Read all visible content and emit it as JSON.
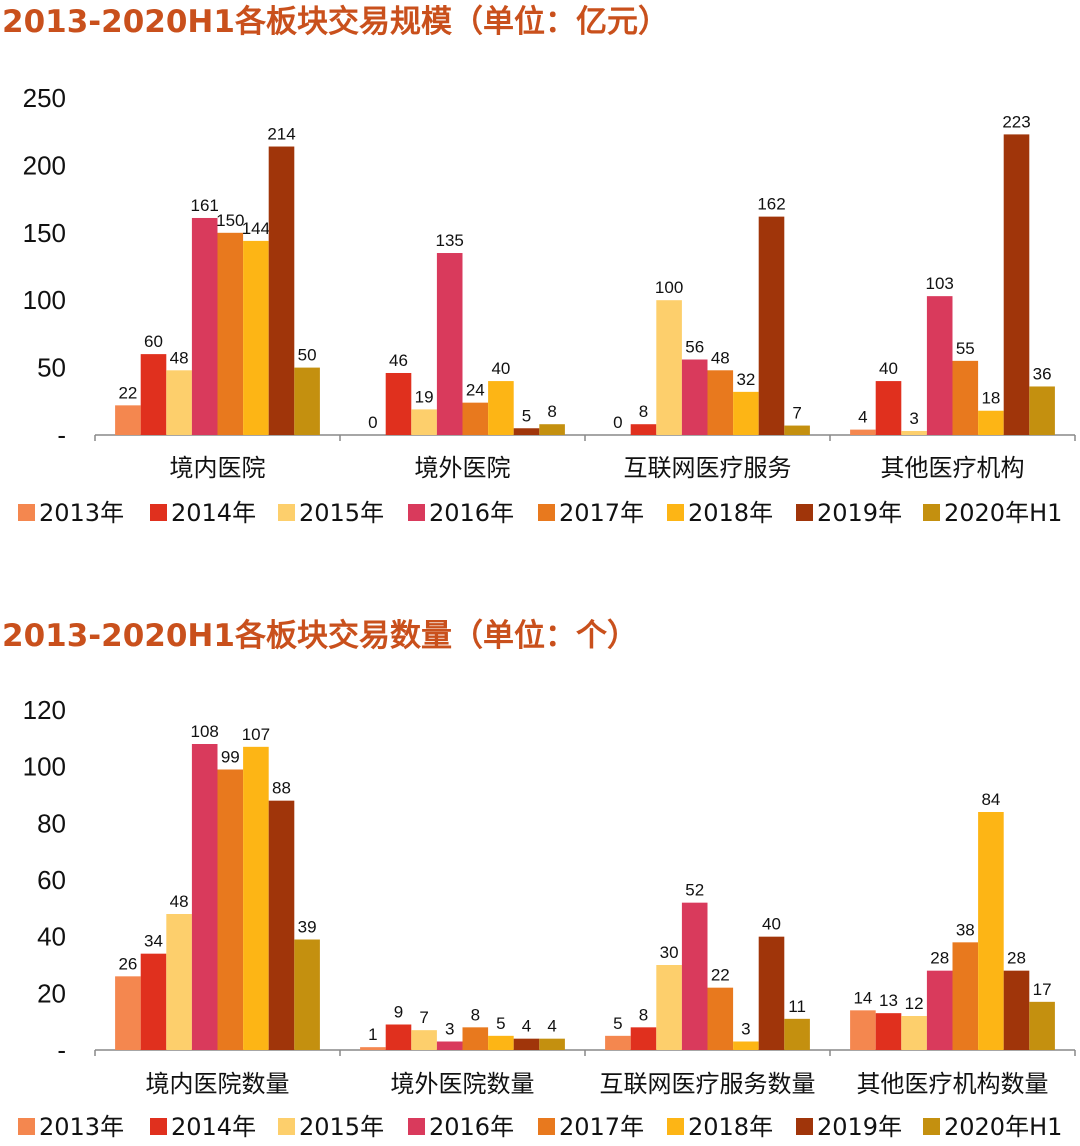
{
  "series_colors": {
    "2013年": "#F4874F",
    "2014年": "#E0301E",
    "2015年": "#FDCF6C",
    "2016年": "#D93A5C",
    "2017年": "#E8791E",
    "2018年": "#FDB515",
    "2019年": "#A0350A",
    "2020年H1": "#C4900F"
  },
  "title_color": "#C9501C",
  "chart_data": [
    {
      "type": "bar",
      "title": "2013-2020H1各板块交易规模（单位：亿元）",
      "categories": [
        "境内医院",
        "境外医院",
        "互联网医疗服务",
        "其他医疗机构"
      ],
      "ylim": [
        0,
        250
      ],
      "yticks": [
        0,
        50,
        100,
        150,
        200,
        250
      ],
      "ytick_labels": [
        "-",
        "50",
        "100",
        "150",
        "200",
        "250"
      ],
      "legend": "bottom",
      "grid": false,
      "series": [
        {
          "name": "2013年",
          "values": [
            22,
            0,
            0,
            4
          ]
        },
        {
          "name": "2014年",
          "values": [
            60,
            46,
            8,
            40
          ]
        },
        {
          "name": "2015年",
          "values": [
            48,
            19,
            100,
            3
          ]
        },
        {
          "name": "2016年",
          "values": [
            161,
            135,
            56,
            103
          ]
        },
        {
          "name": "2017年",
          "values": [
            150,
            24,
            48,
            55
          ]
        },
        {
          "name": "2018年",
          "values": [
            144,
            40,
            32,
            18
          ]
        },
        {
          "name": "2019年",
          "values": [
            214,
            5,
            162,
            223
          ]
        },
        {
          "name": "2020年H1",
          "values": [
            50,
            8,
            7,
            36
          ]
        }
      ]
    },
    {
      "type": "bar",
      "title": "2013-2020H1各板块交易数量（单位：个）",
      "categories": [
        "境内医院数量",
        "境外医院数量",
        "互联网医疗服务数量",
        "其他医疗机构数量"
      ],
      "ylim": [
        0,
        120
      ],
      "yticks": [
        0,
        20,
        40,
        60,
        80,
        100,
        120
      ],
      "ytick_labels": [
        "-",
        "20",
        "40",
        "60",
        "80",
        "100",
        "120"
      ],
      "legend": "bottom",
      "grid": false,
      "series": [
        {
          "name": "2013年",
          "values": [
            26,
            1,
            5,
            14
          ]
        },
        {
          "name": "2014年",
          "values": [
            34,
            9,
            8,
            13
          ]
        },
        {
          "name": "2015年",
          "values": [
            48,
            7,
            30,
            12
          ]
        },
        {
          "name": "2016年",
          "values": [
            108,
            3,
            52,
            28
          ]
        },
        {
          "name": "2017年",
          "values": [
            99,
            8,
            22,
            38
          ]
        },
        {
          "name": "2018年",
          "values": [
            107,
            5,
            3,
            84
          ]
        },
        {
          "name": "2019年",
          "values": [
            88,
            4,
            40,
            28
          ]
        },
        {
          "name": "2020年H1",
          "values": [
            39,
            4,
            11,
            17
          ]
        }
      ]
    }
  ]
}
